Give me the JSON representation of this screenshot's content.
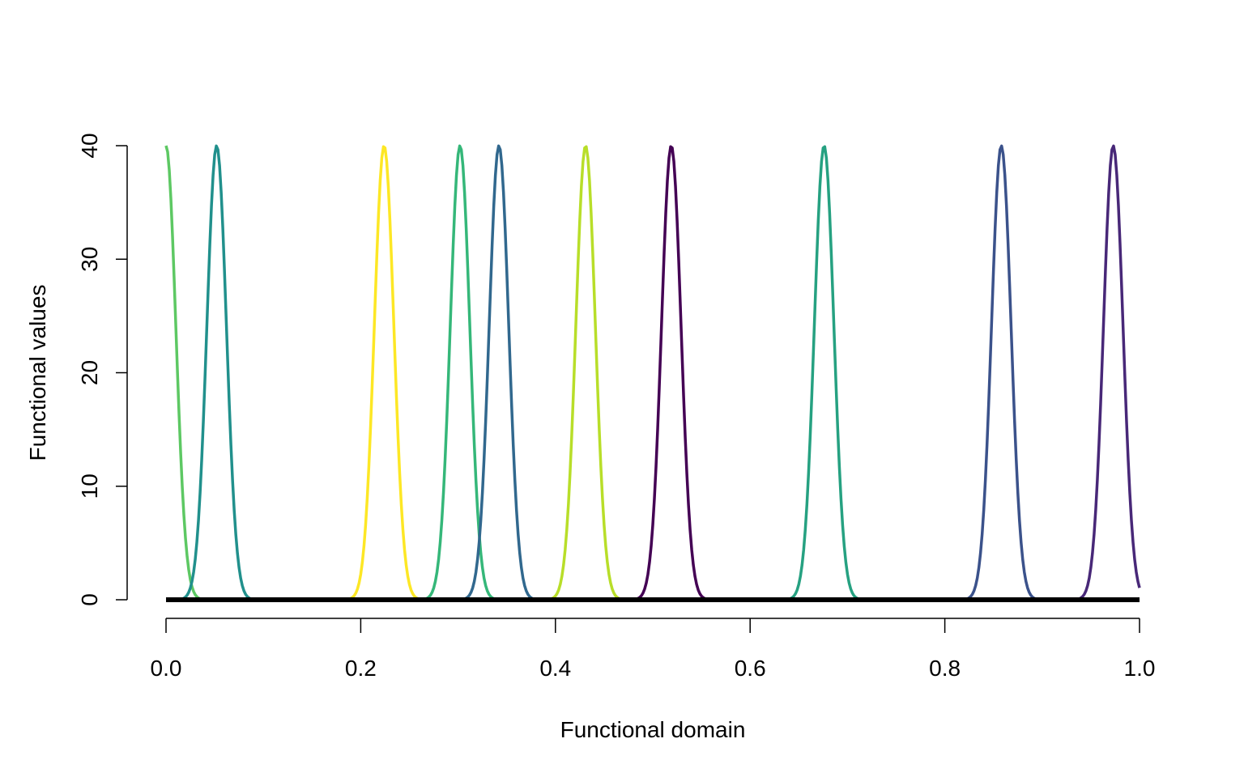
{
  "chart_data": {
    "type": "line",
    "title": "",
    "xlabel": "Functional domain",
    "ylabel": "Functional values",
    "xlim": [
      0,
      1
    ],
    "ylim": [
      0,
      40
    ],
    "x_ticks": [
      "0.0",
      "0.2",
      "0.4",
      "0.6",
      "0.8",
      "1.0"
    ],
    "y_ticks": [
      "0",
      "10",
      "20",
      "30",
      "40"
    ],
    "grid": false,
    "legend": "none",
    "baseline": {
      "y": 0,
      "color": "#000000"
    },
    "series": [
      {
        "center": 0.0,
        "peak": 40,
        "sd": 0.01,
        "color": "#5DC863"
      },
      {
        "center": 0.052,
        "peak": 40,
        "sd": 0.01,
        "color": "#21908C"
      },
      {
        "center": 0.224,
        "peak": 40,
        "sd": 0.01,
        "color": "#FDE725"
      },
      {
        "center": 0.302,
        "peak": 40,
        "sd": 0.01,
        "color": "#35B779"
      },
      {
        "center": 0.342,
        "peak": 40,
        "sd": 0.01,
        "color": "#31688E"
      },
      {
        "center": 0.431,
        "peak": 40,
        "sd": 0.01,
        "color": "#B8DE29"
      },
      {
        "center": 0.519,
        "peak": 40,
        "sd": 0.01,
        "color": "#440154"
      },
      {
        "center": 0.676,
        "peak": 40,
        "sd": 0.01,
        "color": "#26A181"
      },
      {
        "center": 0.858,
        "peak": 40,
        "sd": 0.01,
        "color": "#3B528B"
      },
      {
        "center": 0.973,
        "peak": 40,
        "sd": 0.01,
        "color": "#482878"
      }
    ]
  }
}
